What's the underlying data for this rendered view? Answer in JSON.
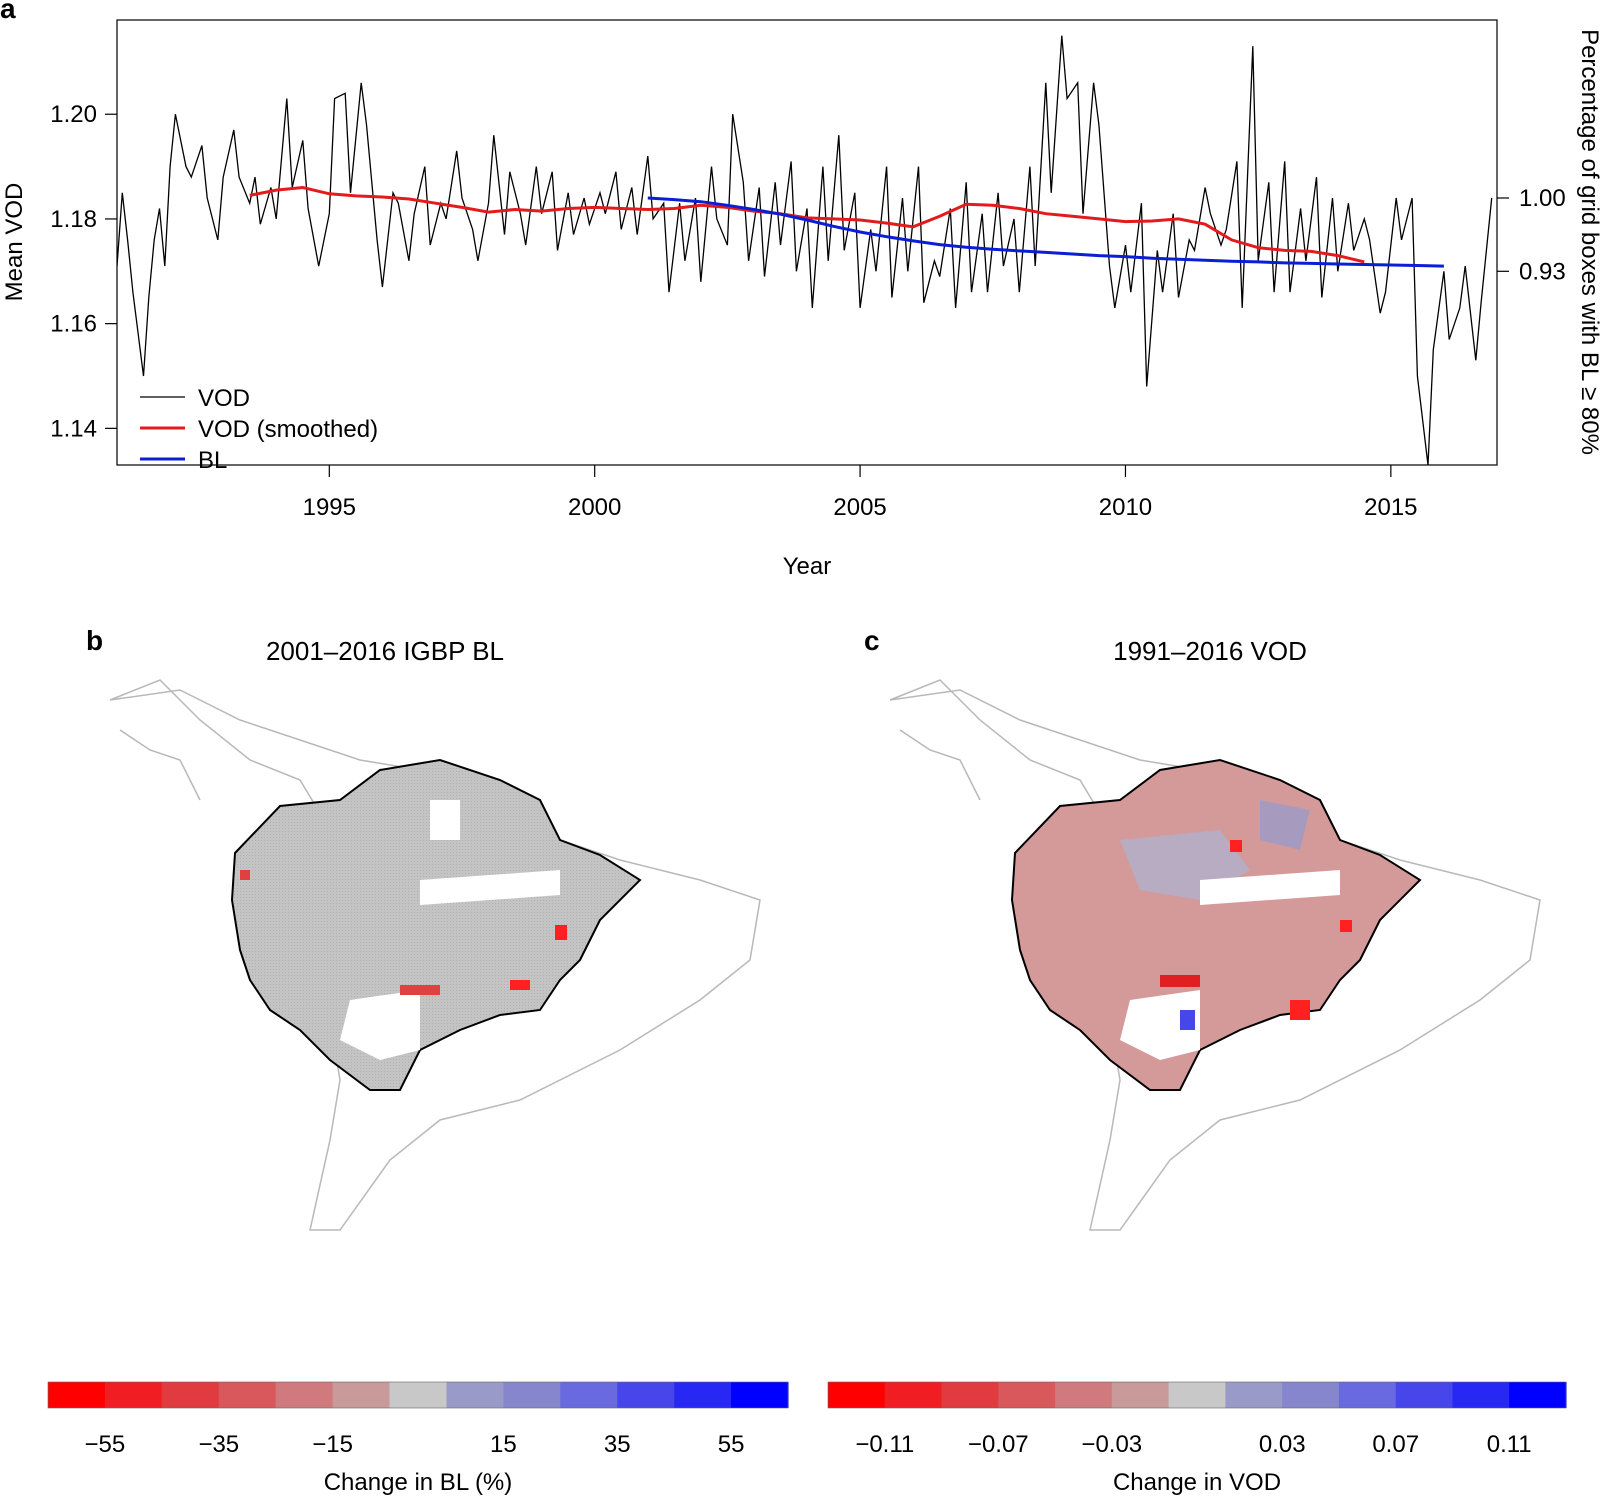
{
  "panels": {
    "a": "a",
    "b": "b",
    "c": "c"
  },
  "chart_data": [
    {
      "type": "line",
      "panel": "a",
      "xlabel": "Year",
      "ylabel": "Mean VOD",
      "ylabel_right": "Percentage of grid boxes with BL ≥ 80%",
      "xlim": [
        1991,
        2017
      ],
      "ylim": [
        1.133,
        1.218
      ],
      "x_ticks": [
        1995,
        2000,
        2005,
        2010,
        2015
      ],
      "x_tick_labels": [
        "1995",
        "2000",
        "2005",
        "2010",
        "2015"
      ],
      "y_ticks": [
        1.14,
        1.16,
        1.18,
        1.2
      ],
      "y_tick_labels": [
        "1.14",
        "1.16",
        "1.18",
        "1.20"
      ],
      "y_right_ticks": [
        1.0,
        0.93
      ],
      "y_right_tick_labels": [
        "1.00",
        "0.93"
      ],
      "y_right_map": {
        "1.00": 1.184,
        "0.93": 1.17
      },
      "legend": [
        "VOD",
        "VOD (smoothed)",
        "BL"
      ],
      "legend_position": "bottom-left",
      "series": [
        {
          "name": "VOD",
          "color": "#000000",
          "x": [
            1991.0,
            1991.1,
            1991.2,
            1991.3,
            1991.4,
            1991.5,
            1991.6,
            1991.7,
            1991.8,
            1991.9,
            1992.0,
            1992.1,
            1992.3,
            1992.4,
            1992.6,
            1992.7,
            1992.9,
            1993.0,
            1993.2,
            1993.3,
            1993.5,
            1993.6,
            1993.7,
            1993.9,
            1994.0,
            1994.2,
            1994.3,
            1994.5,
            1994.6,
            1994.8,
            1995.0,
            1995.1,
            1995.3,
            1995.4,
            1995.6,
            1995.7,
            1995.9,
            1996.0,
            1996.2,
            1996.3,
            1996.5,
            1996.6,
            1996.8,
            1996.9,
            1997.1,
            1997.2,
            1997.4,
            1997.5,
            1997.7,
            1997.8,
            1998.0,
            1998.1,
            1998.3,
            1998.4,
            1998.6,
            1998.7,
            1998.9,
            1999.0,
            1999.2,
            1999.3,
            1999.5,
            1999.6,
            1999.8,
            1999.9,
            2000.1,
            2000.2,
            2000.4,
            2000.5,
            2000.7,
            2000.8,
            2001.0,
            2001.1,
            2001.3,
            2001.4,
            2001.6,
            2001.7,
            2001.9,
            2002.0,
            2002.2,
            2002.3,
            2002.5,
            2002.6,
            2002.8,
            2002.9,
            2003.1,
            2003.2,
            2003.4,
            2003.5,
            2003.7,
            2003.8,
            2004.0,
            2004.1,
            2004.3,
            2004.4,
            2004.6,
            2004.7,
            2004.9,
            2005.0,
            2005.2,
            2005.3,
            2005.5,
            2005.6,
            2005.8,
            2005.9,
            2006.1,
            2006.2,
            2006.4,
            2006.5,
            2006.7,
            2006.8,
            2007.0,
            2007.1,
            2007.3,
            2007.4,
            2007.6,
            2007.7,
            2007.9,
            2008.0,
            2008.2,
            2008.3,
            2008.5,
            2008.6,
            2008.8,
            2008.9,
            2009.1,
            2009.2,
            2009.4,
            2009.5,
            2009.7,
            2009.8,
            2010.0,
            2010.1,
            2010.3,
            2010.4,
            2010.6,
            2010.7,
            2010.9,
            2011.0,
            2011.2,
            2011.3,
            2011.5,
            2011.6,
            2011.8,
            2011.9,
            2012.1,
            2012.2,
            2012.4,
            2012.5,
            2012.7,
            2012.8,
            2013.0,
            2013.1,
            2013.3,
            2013.4,
            2013.6,
            2013.7,
            2013.9,
            2014.0,
            2014.2,
            2014.3,
            2014.5,
            2014.6,
            2014.8,
            2014.9,
            2015.1,
            2015.2,
            2015.4,
            2015.5,
            2015.7,
            2015.8,
            2016.0,
            2016.1,
            2016.3,
            2016.4,
            2016.6,
            2016.7,
            2016.9
          ],
          "values": [
            1.171,
            1.185,
            1.176,
            1.166,
            1.158,
            1.15,
            1.165,
            1.176,
            1.182,
            1.171,
            1.19,
            1.2,
            1.19,
            1.188,
            1.194,
            1.184,
            1.176,
            1.188,
            1.197,
            1.188,
            1.183,
            1.188,
            1.179,
            1.186,
            1.18,
            1.203,
            1.186,
            1.195,
            1.182,
            1.171,
            1.181,
            1.203,
            1.204,
            1.185,
            1.206,
            1.198,
            1.176,
            1.167,
            1.185,
            1.183,
            1.172,
            1.181,
            1.19,
            1.175,
            1.183,
            1.18,
            1.193,
            1.184,
            1.178,
            1.172,
            1.183,
            1.196,
            1.177,
            1.189,
            1.181,
            1.175,
            1.19,
            1.181,
            1.189,
            1.174,
            1.185,
            1.177,
            1.184,
            1.179,
            1.185,
            1.181,
            1.189,
            1.178,
            1.186,
            1.177,
            1.192,
            1.18,
            1.183,
            1.166,
            1.183,
            1.172,
            1.184,
            1.168,
            1.19,
            1.18,
            1.175,
            1.2,
            1.187,
            1.172,
            1.186,
            1.169,
            1.187,
            1.175,
            1.191,
            1.17,
            1.182,
            1.163,
            1.19,
            1.172,
            1.196,
            1.174,
            1.185,
            1.163,
            1.178,
            1.17,
            1.19,
            1.165,
            1.184,
            1.17,
            1.19,
            1.164,
            1.172,
            1.169,
            1.182,
            1.163,
            1.187,
            1.166,
            1.181,
            1.166,
            1.185,
            1.171,
            1.18,
            1.166,
            1.19,
            1.171,
            1.206,
            1.185,
            1.215,
            1.203,
            1.206,
            1.181,
            1.206,
            1.198,
            1.171,
            1.163,
            1.175,
            1.166,
            1.183,
            1.148,
            1.174,
            1.166,
            1.181,
            1.165,
            1.176,
            1.174,
            1.186,
            1.181,
            1.175,
            1.178,
            1.191,
            1.163,
            1.213,
            1.172,
            1.187,
            1.166,
            1.191,
            1.166,
            1.182,
            1.172,
            1.188,
            1.165,
            1.184,
            1.17,
            1.183,
            1.174,
            1.18,
            1.176,
            1.162,
            1.166,
            1.184,
            1.176,
            1.184,
            1.15,
            1.133,
            1.155,
            1.17,
            1.157,
            1.163,
            1.171,
            1.153,
            1.164,
            1.184
          ]
        },
        {
          "name": "VOD (smoothed)",
          "color": "#e41a1c",
          "x": [
            1993.5,
            1994.0,
            1994.5,
            1995.0,
            1995.5,
            1996.0,
            1996.5,
            1997.0,
            1997.5,
            1998.0,
            1998.5,
            1999.0,
            1999.5,
            2000.0,
            2000.5,
            2001.0,
            2001.5,
            2002.0,
            2002.5,
            2003.0,
            2003.5,
            2004.0,
            2004.5,
            2005.0,
            2005.5,
            2006.0,
            2006.5,
            2007.0,
            2007.5,
            2008.0,
            2008.5,
            2009.0,
            2009.5,
            2010.0,
            2010.5,
            2011.0,
            2011.5,
            2012.0,
            2012.5,
            2013.0,
            2013.5,
            2014.0,
            2014.5
          ],
          "values": [
            1.1845,
            1.1855,
            1.186,
            1.1848,
            1.1844,
            1.1842,
            1.1838,
            1.183,
            1.1822,
            1.1813,
            1.1818,
            1.1815,
            1.182,
            1.1822,
            1.182,
            1.1818,
            1.182,
            1.1826,
            1.1822,
            1.1815,
            1.181,
            1.1802,
            1.18,
            1.1798,
            1.1792,
            1.1785,
            1.1805,
            1.1828,
            1.1826,
            1.182,
            1.181,
            1.1805,
            1.18,
            1.1795,
            1.1796,
            1.18,
            1.179,
            1.176,
            1.1745,
            1.174,
            1.1738,
            1.173,
            1.1718
          ]
        },
        {
          "name": "BL",
          "color": "#0a1ed6",
          "x": [
            2001.0,
            2001.5,
            2002.0,
            2002.5,
            2003.0,
            2003.5,
            2004.0,
            2004.5,
            2005.0,
            2005.5,
            2006.0,
            2006.5,
            2007.0,
            2007.5,
            2008.0,
            2008.5,
            2009.0,
            2009.5,
            2010.0,
            2010.5,
            2011.0,
            2011.5,
            2012.0,
            2012.5,
            2013.0,
            2013.5,
            2014.0,
            2014.5,
            2015.0,
            2015.5,
            2016.0
          ],
          "values": [
            1.184,
            1.1837,
            1.1833,
            1.1826,
            1.1818,
            1.1809,
            1.1798,
            1.1786,
            1.1775,
            1.1766,
            1.1758,
            1.1751,
            1.1746,
            1.1742,
            1.1739,
            1.1736,
            1.1733,
            1.173,
            1.1728,
            1.1725,
            1.1723,
            1.1721,
            1.1719,
            1.1718,
            1.1716,
            1.1715,
            1.1714,
            1.1713,
            1.1712,
            1.1711,
            1.171
          ]
        }
      ]
    },
    {
      "type": "heatmap",
      "panel": "b",
      "title": "2001–2016 IGBP BL",
      "colorbar_label": "Change in BL (%)",
      "colorbar_ticks": [
        "−55",
        "−35",
        "−15",
        "15",
        "35",
        "55"
      ],
      "colorbar_colors": [
        "#ff0000",
        "#f01e22",
        "#e03c40",
        "#d8585c",
        "#d07a7d",
        "#c89a9a",
        "#c8c8c8",
        "#9a9ac8",
        "#8686cc",
        "#6a6ae0",
        "#4646ea",
        "#2828f4",
        "#0000ff"
      ]
    },
    {
      "type": "heatmap",
      "panel": "c",
      "title": "1991–2016 VOD",
      "colorbar_label": "Change in VOD",
      "colorbar_ticks": [
        "−0.11",
        "−0.07",
        "−0.03",
        "0.03",
        "0.07",
        "0.11"
      ],
      "colorbar_colors": [
        "#ff0000",
        "#f01e22",
        "#e03c40",
        "#d8585c",
        "#d07a7d",
        "#c89a9a",
        "#c8c8c8",
        "#9a9ac8",
        "#8686cc",
        "#6a6ae0",
        "#4646ea",
        "#2828f4",
        "#0000ff"
      ]
    }
  ]
}
